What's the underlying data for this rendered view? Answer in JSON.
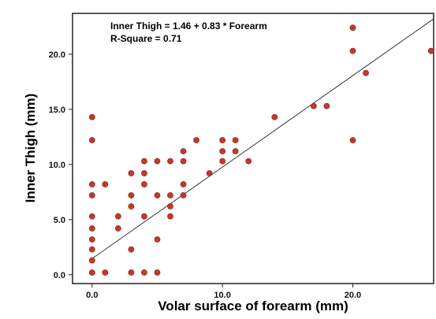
{
  "chart_data": {
    "type": "scatter",
    "title": "",
    "xlabel": "Volar surface of forearm (mm)",
    "ylabel": "Inner Thigh (mm)",
    "xlim": [
      -1.5,
      26.2
    ],
    "ylim": [
      -0.8,
      23.7
    ],
    "xticks": [
      0,
      10,
      20
    ],
    "xtick_labels": [
      "0.0",
      "10.0",
      "20.0"
    ],
    "yticks": [
      0,
      5,
      10,
      15,
      20
    ],
    "ytick_labels": [
      "0.0",
      "5.0",
      "10.0",
      "15.0",
      "20.0"
    ],
    "grid": false,
    "legend": "none",
    "point_color": "#c0392b",
    "line_color": "#333333",
    "annotations": [
      "Inner Thigh = 1.46 + 0.83 * Forearm",
      "R-Square = 0.71"
    ],
    "regression": {
      "intercept": 1.46,
      "slope": 0.83
    },
    "points": [
      {
        "x": 0,
        "y": 0.2
      },
      {
        "x": 0,
        "y": 1.3
      },
      {
        "x": 0,
        "y": 2.3
      },
      {
        "x": 0,
        "y": 3.2
      },
      {
        "x": 0,
        "y": 4.2
      },
      {
        "x": 0,
        "y": 5.3
      },
      {
        "x": 0,
        "y": 7.2
      },
      {
        "x": 0,
        "y": 8.2
      },
      {
        "x": 0,
        "y": 12.2
      },
      {
        "x": 0,
        "y": 14.3
      },
      {
        "x": 1,
        "y": 0.2
      },
      {
        "x": 1,
        "y": 8.2
      },
      {
        "x": 2,
        "y": 4.2
      },
      {
        "x": 2,
        "y": 5.3
      },
      {
        "x": 3,
        "y": 0.2
      },
      {
        "x": 3,
        "y": 2.3
      },
      {
        "x": 3,
        "y": 6.2
      },
      {
        "x": 3,
        "y": 7.2
      },
      {
        "x": 3,
        "y": 9.2
      },
      {
        "x": 4,
        "y": 0.2
      },
      {
        "x": 4,
        "y": 5.3
      },
      {
        "x": 4,
        "y": 8.2
      },
      {
        "x": 4,
        "y": 9.2
      },
      {
        "x": 4,
        "y": 10.3
      },
      {
        "x": 5,
        "y": 0.2
      },
      {
        "x": 5,
        "y": 3.2
      },
      {
        "x": 5,
        "y": 7.2
      },
      {
        "x": 5,
        "y": 10.3
      },
      {
        "x": 6,
        "y": 5.3
      },
      {
        "x": 6,
        "y": 6.2
      },
      {
        "x": 6,
        "y": 7.2
      },
      {
        "x": 6,
        "y": 10.3
      },
      {
        "x": 7,
        "y": 7.2
      },
      {
        "x": 7,
        "y": 8.2
      },
      {
        "x": 7,
        "y": 10.3
      },
      {
        "x": 7,
        "y": 11.2
      },
      {
        "x": 8,
        "y": 12.2
      },
      {
        "x": 9,
        "y": 9.2
      },
      {
        "x": 10,
        "y": 10.3
      },
      {
        "x": 10,
        "y": 11.2
      },
      {
        "x": 10,
        "y": 12.2
      },
      {
        "x": 11,
        "y": 11.2
      },
      {
        "x": 11,
        "y": 12.2
      },
      {
        "x": 12,
        "y": 10.3
      },
      {
        "x": 14,
        "y": 14.3
      },
      {
        "x": 17,
        "y": 15.3
      },
      {
        "x": 18,
        "y": 15.3
      },
      {
        "x": 20,
        "y": 12.2
      },
      {
        "x": 20,
        "y": 20.3
      },
      {
        "x": 20,
        "y": 22.4
      },
      {
        "x": 21,
        "y": 18.3
      },
      {
        "x": 26,
        "y": 20.3
      }
    ]
  }
}
